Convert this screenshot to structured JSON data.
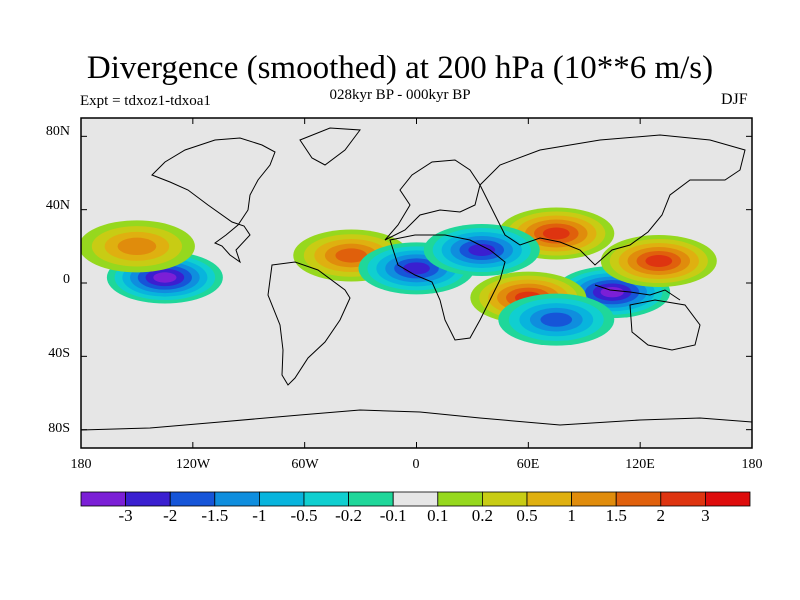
{
  "title": "Divergence (smoothed) at 200 hPa (10**6 m/s)",
  "subtitle": "028kyr BP - 000kyr BP",
  "experiment": "Expt = tdxoz1-tdxoa1",
  "season": "DJF",
  "map": {
    "lat_ticks": [
      "80N",
      "40N",
      "0",
      "40S",
      "80S"
    ],
    "lon_ticks": [
      "180",
      "120W",
      "60W",
      "0",
      "60E",
      "120E",
      "180"
    ],
    "lon_range": [
      -180,
      180
    ],
    "lat_range": [
      -90,
      90
    ],
    "anomaly_regions": [
      {
        "name": "indonesia-convergence",
        "lon": 105,
        "lat": -5,
        "level": -3
      },
      {
        "name": "central-pacific-convergence",
        "lon": -135,
        "lat": 3,
        "level": -3
      },
      {
        "name": "west-pacific-divergence",
        "lon": 130,
        "lat": 12,
        "level": 2
      },
      {
        "name": "southern-africa-divergence",
        "lon": 60,
        "lat": -8,
        "level": 2
      },
      {
        "name": "arabia-divergence",
        "lon": 75,
        "lat": 27,
        "level": 2
      },
      {
        "name": "north-atlantic-divergence",
        "lon": -35,
        "lat": 15,
        "level": 1.5
      },
      {
        "name": "mid-atlantic-convergence",
        "lon": 0,
        "lat": 8,
        "level": -2
      },
      {
        "name": "eastern-europe-convergence",
        "lon": 35,
        "lat": 18,
        "level": -2
      },
      {
        "name": "indian-ocean-convergence",
        "lon": 75,
        "lat": -20,
        "level": -1.5
      },
      {
        "name": "north-pacific-divergence",
        "lon": -150,
        "lat": 20,
        "level": 1
      }
    ]
  },
  "colorbar": {
    "labels": [
      "-3",
      "-2",
      "-1.5",
      "-1",
      "-0.5",
      "-0.2",
      "-0.1",
      "0.1",
      "0.2",
      "0.5",
      "1",
      "1.5",
      "2",
      "3"
    ],
    "colors": [
      "#7b1fd6",
      "#3a1fd0",
      "#1655d8",
      "#0f8ede",
      "#08b4dd",
      "#10cfd0",
      "#1fd79a",
      "#e6e6e6",
      "#96d81e",
      "#c8cc14",
      "#dfb010",
      "#e08c0c",
      "#e0600c",
      "#de3410",
      "#de0c0c"
    ]
  }
}
